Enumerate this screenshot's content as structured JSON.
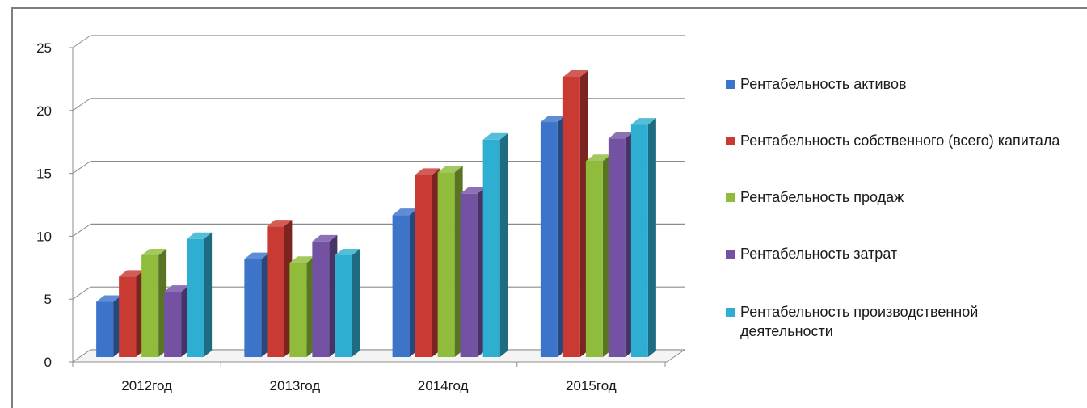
{
  "chart_data": {
    "type": "bar",
    "categories": [
      "2012год",
      "2013год",
      "2014год",
      "2015год"
    ],
    "series": [
      {
        "name": "Рентабельность активов",
        "color": "#3b74c9",
        "values": [
          4.4,
          7.8,
          11.3,
          18.7
        ]
      },
      {
        "name": "Рентабельность собственного (всего) капитала",
        "color": "#c83a32",
        "values": [
          6.4,
          10.4,
          14.5,
          22.3
        ]
      },
      {
        "name": "Рентабельность продаж",
        "color": "#8fbc3a",
        "values": [
          8.1,
          7.5,
          14.7,
          15.6
        ]
      },
      {
        "name": "Рентабельность затрат",
        "color": "#7352a3",
        "values": [
          5.2,
          9.2,
          13.0,
          17.4
        ]
      },
      {
        "name": "Рентабельность производственной деятельности",
        "color": "#2eaed0",
        "values": [
          9.4,
          8.1,
          17.3,
          18.5
        ]
      }
    ],
    "yticks": [
      "0",
      "5",
      "10",
      "15",
      "20",
      "25"
    ],
    "ylim": [
      0,
      25
    ],
    "grid": true,
    "legend": "right",
    "style": "3d-clustered-column"
  }
}
